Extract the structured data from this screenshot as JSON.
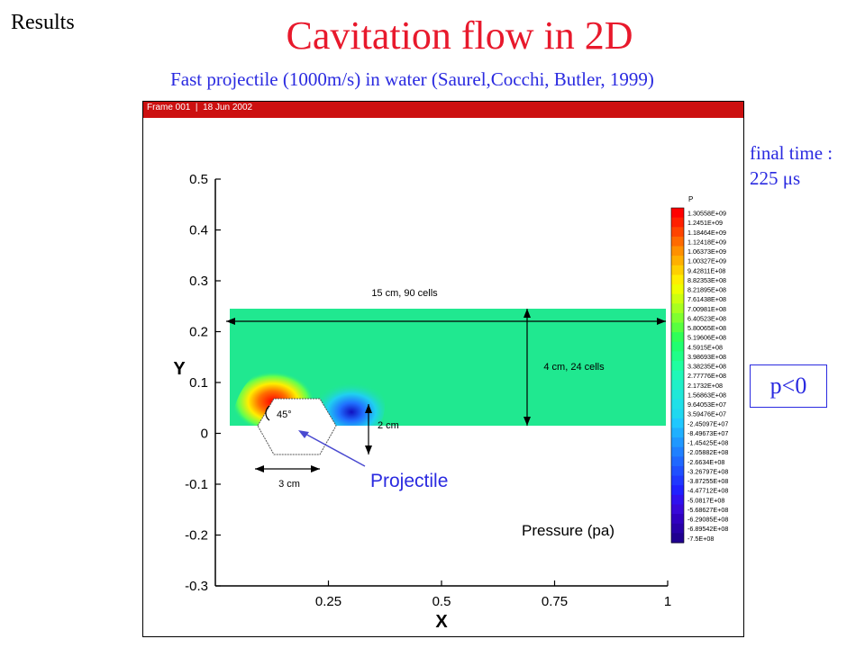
{
  "slide": {
    "section": "Results",
    "title": "Cavitation flow in 2D",
    "subtitle": "Fast projectile (1000m/s) in water (Saurel,Cocchi, Butler, 1999)",
    "final_time_label": "final time :",
    "final_time_value": "225 μs",
    "negative_pressure_note": "p<0"
  },
  "figure": {
    "header": "Frame 001  |  18 Jun 2002",
    "colors": {
      "header_bar": "#cc1010",
      "domain": "#20e890",
      "projectile_outline": "#555555",
      "arrow": "#4a4ad0",
      "annotation_blue": "#2a2ae0"
    },
    "annotations": {
      "domain_length": "15 cm, 90 cells",
      "domain_height": "4 cm, 24 cells",
      "projectile_height": "2 cm",
      "projectile_length": "3 cm",
      "angle": "45°",
      "projectile_label": "Projectile",
      "field_label": "Pressure (pa)"
    }
  },
  "chart_data": {
    "type": "heatmap",
    "xlabel": "X",
    "ylabel": "Y",
    "xlim": [
      0,
      1
    ],
    "ylim": [
      -0.3,
      0.5
    ],
    "xticks": [
      "0.25",
      "0.5",
      "0.75",
      "1"
    ],
    "xtick_values": [
      0.25,
      0.5,
      0.75,
      1
    ],
    "yticks": [
      "0.5",
      "0.4",
      "0.3",
      "0.2",
      "0.1",
      "0",
      "-0.1",
      "-0.2",
      "-0.3"
    ],
    "ytick_values": [
      0.5,
      0.4,
      0.3,
      0.2,
      0.1,
      0,
      -0.1,
      -0.2,
      -0.3
    ],
    "legend_title": "P",
    "legend_placement": "right",
    "legend_values": [
      "1.30558E+09",
      "1.2451E+09",
      "1.18464E+09",
      "1.12418E+09",
      "1.06373E+09",
      "1.00327E+09",
      "9.42811E+08",
      "8.82353E+08",
      "8.21895E+08",
      "7.61438E+08",
      "7.00981E+08",
      "6.40523E+08",
      "5.80065E+08",
      "5.19606E+08",
      "4.5915E+08",
      "3.98693E+08",
      "3.38235E+08",
      "2.77776E+08",
      "2.1732E+08",
      "1.56863E+08",
      "9.64053E+07",
      "3.59476E+07",
      "-2.45097E+07",
      "-8.49673E+07",
      "-1.45425E+08",
      "-2.05882E+08",
      "-2.6634E+08",
      "-3.26797E+08",
      "-3.87255E+08",
      "-4.47712E+08",
      "-5.0817E+08",
      "-5.68627E+08",
      "-6.29085E+08",
      "-6.89542E+08",
      "-7.5E+08"
    ],
    "legend_colors": [
      "#ff0000",
      "#ff2000",
      "#ff4400",
      "#ff6a00",
      "#ff9000",
      "#ffb000",
      "#ffd000",
      "#ffee00",
      "#eeff00",
      "#ccff10",
      "#a8ff20",
      "#80ff30",
      "#58ff40",
      "#30ff58",
      "#20ff70",
      "#20ff88",
      "#20ffa0",
      "#20f8b8",
      "#20f0c8",
      "#20e8d8",
      "#20e0e8",
      "#20d8f0",
      "#20c8ff",
      "#20b0ff",
      "#2098ff",
      "#2080ff",
      "#2068ff",
      "#2050ff",
      "#2038ff",
      "#2020ff",
      "#3010ee",
      "#3808d8",
      "#3000c0",
      "#2800a8",
      "#200090"
    ]
  }
}
